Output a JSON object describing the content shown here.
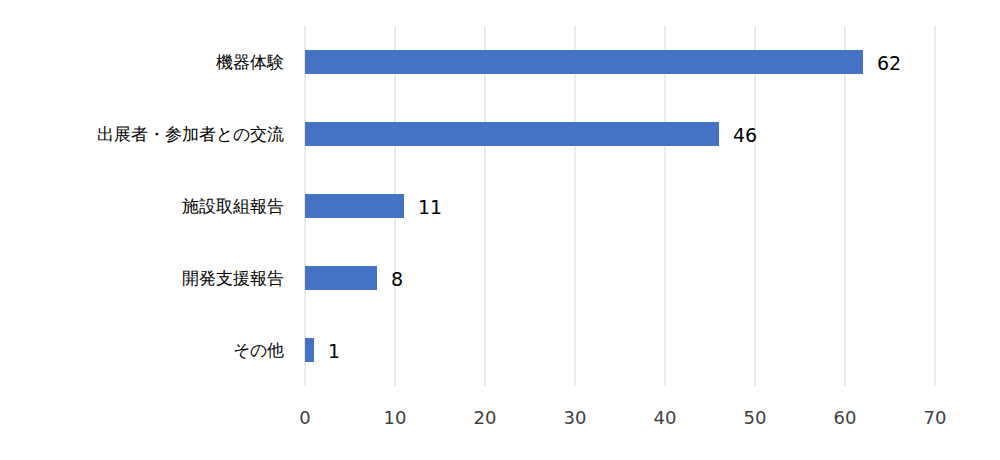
{
  "chart_data": {
    "type": "bar",
    "orientation": "horizontal",
    "categories": [
      "機器体験",
      "出展者・参加者との交流",
      "施設取組報告",
      "開発支援報告",
      "その他"
    ],
    "values": [
      62,
      46,
      11,
      8,
      1
    ],
    "color": "#4472c4",
    "xlim": [
      0,
      70
    ],
    "xticks": [
      0,
      10,
      20,
      30,
      40,
      50,
      60,
      70
    ],
    "grid": true,
    "data_labels": true
  }
}
